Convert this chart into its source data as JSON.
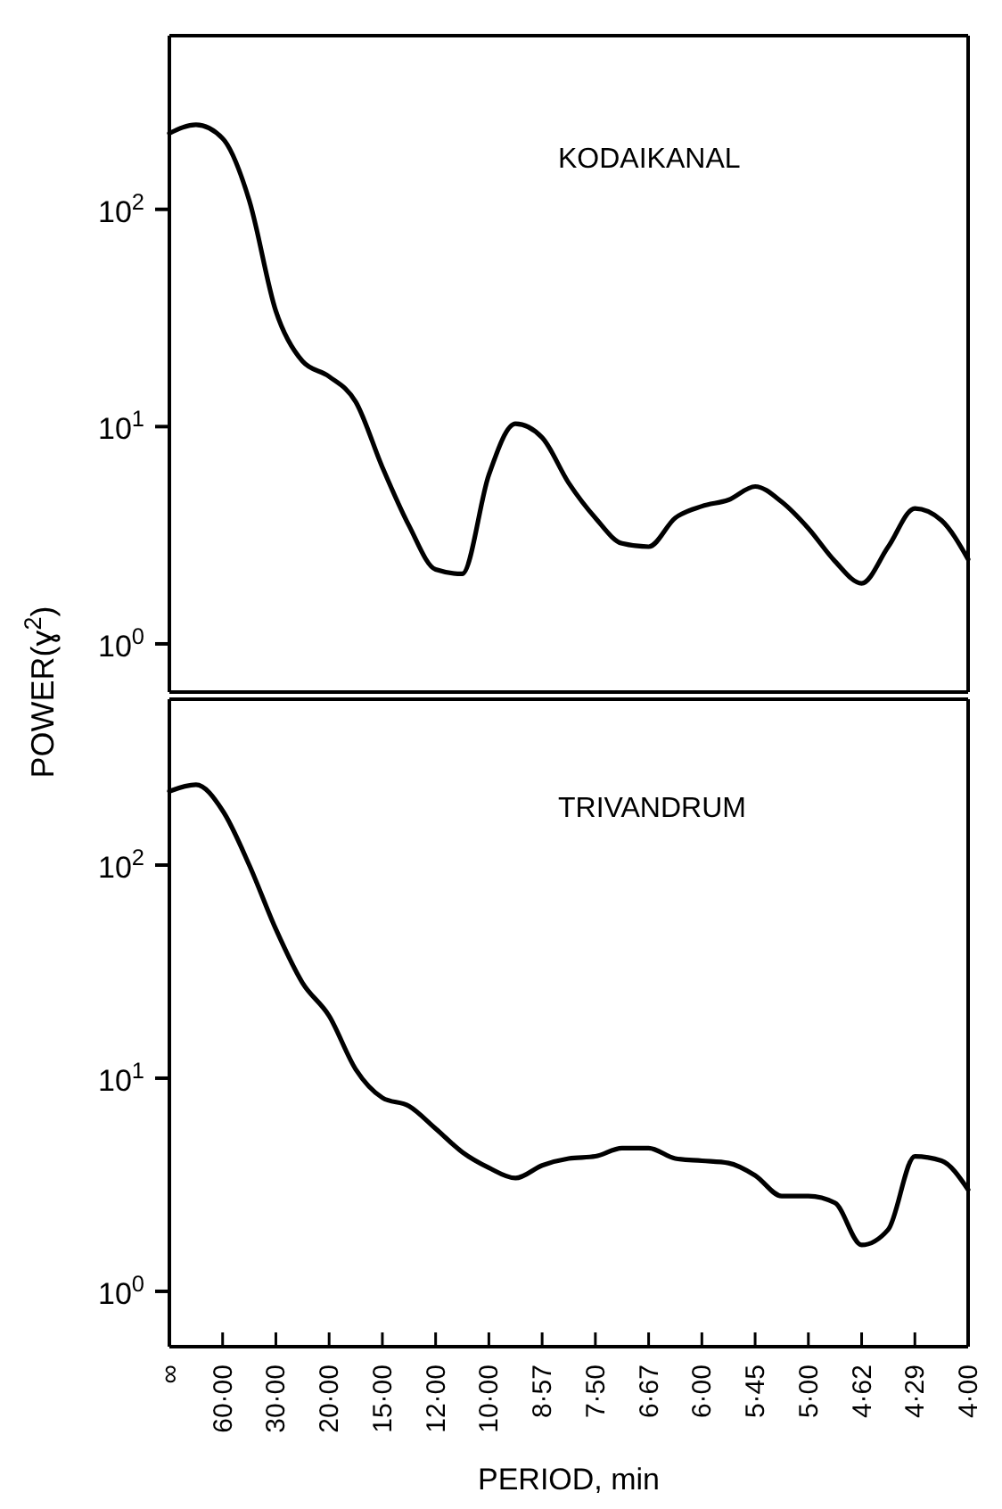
{
  "chart_data": [
    {
      "type": "line",
      "title": "KODAIKANAL",
      "ylabel": "POWER(ɣ$^{2}$)",
      "log": "y",
      "categories": [
        null,
        null,
        null,
        null,
        null,
        null,
        null,
        null,
        null,
        null,
        null,
        null,
        null,
        null,
        null,
        null,
        null,
        null,
        null,
        null,
        null,
        null,
        null,
        null,
        null,
        null,
        null,
        null,
        null,
        null,
        null
      ],
      "ylim": [
        0.6,
        630
      ],
      "yticks": [
        {
          "value": 1,
          "label": "10$^{0}$"
        },
        {
          "value": 10,
          "label": "10$^{1}$"
        },
        {
          "value": 100,
          "label": "10$^{2}$"
        }
      ],
      "tick_labels": "y",
      "marker": "none",
      "line_style": "solid",
      "series": [
        {
          "color": "#000000",
          "values": [
            224,
            245,
            212,
            110,
            34,
            20,
            17,
            13,
            6.5,
            3.5,
            2.2,
            2.1,
            6,
            10.3,
            8.9,
            5.5,
            3.8,
            2.9,
            2.8,
            3.8,
            4.3,
            4.6,
            5.3,
            4.5,
            3.4,
            2.4,
            1.9,
            2.8,
            4.2,
            3.7,
            2.45
          ]
        }
      ]
    },
    {
      "type": "line",
      "title": "TRIVANDRUM",
      "xlabel": "PERIOD, min",
      "log": "y",
      "categories": [
        "∞",
        null,
        "60·00",
        null,
        "30·00",
        null,
        "20·00",
        null,
        "15·00",
        null,
        "12·00",
        null,
        "10·00",
        null,
        "8·57",
        null,
        "7·50",
        null,
        "6·67",
        null,
        "6·00",
        null,
        "5·45",
        null,
        "5·00",
        null,
        "4·62",
        null,
        "4·29",
        null,
        "4·00"
      ],
      "ylim": [
        0.55,
        600
      ],
      "yticks": [
        {
          "value": 1,
          "label": "10$^{0}$"
        },
        {
          "value": 10,
          "label": "10$^{1}$"
        },
        {
          "value": 100,
          "label": "10$^{2}$"
        }
      ],
      "marker": "none",
      "line_style": "solid",
      "series": [
        {
          "color": "#000000",
          "values": [
            222,
            238,
            180,
            100,
            50,
            28,
            19.6,
            11,
            8.1,
            7.4,
            5.8,
            4.5,
            3.8,
            3.4,
            3.9,
            4.2,
            4.3,
            4.7,
            4.7,
            4.2,
            4.1,
            4.0,
            3.5,
            2.8,
            2.8,
            2.6,
            1.65,
            1.95,
            4.3,
            4.1,
            3.0
          ]
        }
      ]
    }
  ]
}
